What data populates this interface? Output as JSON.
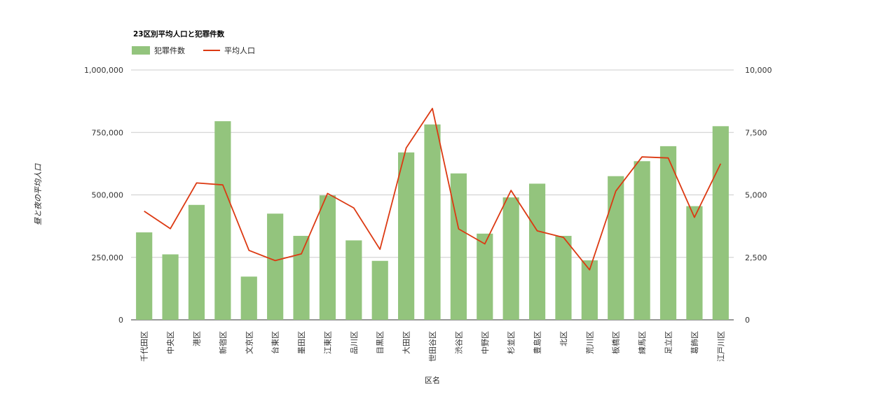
{
  "chart_data": {
    "type": "bar",
    "title": "23区別平均人口と犯罪件数",
    "xlabel": "区名",
    "ylabel": "昼と夜の平均人口",
    "y2label": "",
    "categories": [
      "千代田区",
      "中央区",
      "港区",
      "新宿区",
      "文京区",
      "台東区",
      "墨田区",
      "江東区",
      "品川区",
      "目黒区",
      "大田区",
      "世田谷区",
      "渋谷区",
      "中野区",
      "杉並区",
      "豊島区",
      "北区",
      "荒川区",
      "板橋区",
      "練馬区",
      "足立区",
      "葛飾区",
      "江戸川区"
    ],
    "series": [
      {
        "name": "犯罪件数",
        "type": "bar",
        "axis": "left",
        "color": "#93c47d",
        "values": [
          350000,
          262000,
          460000,
          795000,
          173000,
          425000,
          336000,
          498000,
          318000,
          236000,
          670000,
          782000,
          586000,
          345000,
          490000,
          545000,
          336000,
          238000,
          575000,
          635000,
          695000,
          455000,
          775000
        ]
      },
      {
        "name": "平均人口",
        "type": "line",
        "axis": "right",
        "color": "#dc3912",
        "values": [
          4350,
          3650,
          5480,
          5400,
          2780,
          2370,
          2640,
          5060,
          4480,
          2820,
          6880,
          8460,
          3640,
          3040,
          5180,
          3560,
          3300,
          2000,
          5150,
          6520,
          6480,
          4100,
          6250
        ]
      }
    ],
    "ylim": [
      0,
      1000000
    ],
    "y2lim": [
      0,
      10000
    ],
    "yticks": [
      "0",
      "250,000",
      "500,000",
      "750,000",
      "1,000,000"
    ],
    "y2ticks": [
      "0",
      "2,500",
      "5,000",
      "7,500",
      "10,000"
    ],
    "grid": true,
    "legend": "top-left"
  }
}
